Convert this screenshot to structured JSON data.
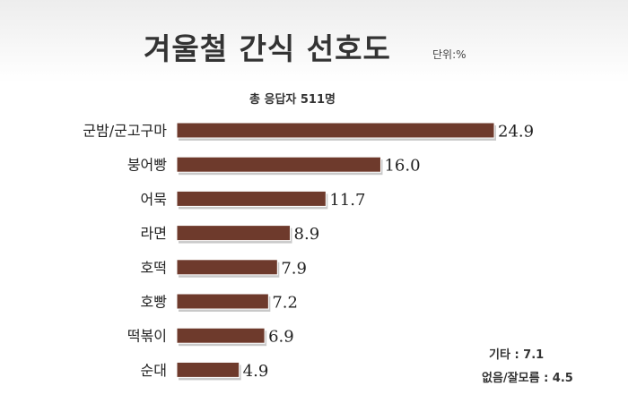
{
  "header": {
    "title": "겨울철 간식 선호도",
    "unit": "단위:%",
    "respondents": "총 응답자 511명"
  },
  "notes": {
    "other": "기타 : 7.1",
    "none": "없음/잘모름 : 4.5"
  },
  "colors": {
    "bar": "#6e3a2c",
    "bar_shadow": "#c9c9c9"
  },
  "chart_data": {
    "type": "bar",
    "orientation": "horizontal",
    "title": "겨울철 간식 선호도",
    "categories": [
      "군밤/군고구마",
      "붕어빵",
      "어묵",
      "라면",
      "호떡",
      "호빵",
      "떡볶이",
      "순대"
    ],
    "values": [
      24.9,
      16.0,
      11.7,
      8.9,
      7.9,
      7.2,
      6.9,
      4.9
    ],
    "value_labels": [
      "24.9",
      "16.0",
      "11.7",
      "8.9",
      "7.9",
      "7.2",
      "6.9",
      "4.9"
    ],
    "xlim": [
      0,
      24.9
    ],
    "grid": false,
    "legend": "none"
  }
}
